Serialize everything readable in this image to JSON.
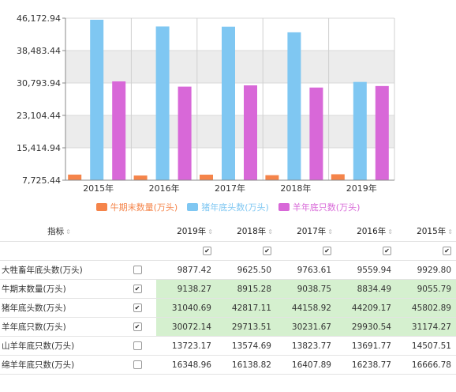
{
  "chart_data": {
    "type": "bar",
    "categories": [
      "2015年",
      "2016年",
      "2017年",
      "2018年",
      "2019年"
    ],
    "series": [
      {
        "name": "牛期末数量(万头)",
        "color": "#f5844a",
        "values": [
          9055.79,
          8834.49,
          9038.75,
          8915.28,
          9138.27
        ]
      },
      {
        "name": "猪年底头数(万头)",
        "color": "#7fc7f2",
        "values": [
          45802.89,
          44209.17,
          44158.92,
          42817.11,
          31040.69
        ]
      },
      {
        "name": "羊年底只数(万头)",
        "color": "#d868d8",
        "values": [
          31174.27,
          29930.54,
          30231.67,
          29713.51,
          30072.14
        ]
      }
    ],
    "ylim": [
      7725.44,
      46172.94
    ],
    "yticks": [
      "46,172.94",
      "38,483.44",
      "30,793.94",
      "23,104.44",
      "15,414.94",
      "7,725.44"
    ],
    "ytick_values": [
      46172.94,
      38483.44,
      30793.94,
      23104.44,
      15414.94,
      7725.44
    ],
    "legend_position": "bottom",
    "grid": true
  },
  "table": {
    "headers": {
      "indicator": "指标",
      "years": [
        "2019年",
        "2018年",
        "2017年",
        "2016年",
        "2015年"
      ]
    },
    "sort_icon": "⇕",
    "check_mark": "✔",
    "rows": [
      {
        "name": "大牲畜年底头数(万头)",
        "checked": false,
        "values": [
          "9877.42",
          "9625.50",
          "9763.61",
          "9559.94",
          "9929.80"
        ]
      },
      {
        "name": "牛期末数量(万头)",
        "checked": true,
        "values": [
          "9138.27",
          "8915.28",
          "9038.75",
          "8834.49",
          "9055.79"
        ]
      },
      {
        "name": "猪年底头数(万头)",
        "checked": true,
        "values": [
          "31040.69",
          "42817.11",
          "44158.92",
          "44209.17",
          "45802.89"
        ]
      },
      {
        "name": "羊年底只数(万头)",
        "checked": true,
        "values": [
          "30072.14",
          "29713.51",
          "30231.67",
          "29930.54",
          "31174.27"
        ]
      },
      {
        "name": "山羊年底只数(万头)",
        "checked": false,
        "values": [
          "13723.17",
          "13574.69",
          "13823.77",
          "13691.77",
          "14507.51"
        ]
      },
      {
        "name": "绵羊年底只数(万头)",
        "checked": false,
        "values": [
          "16348.96",
          "16138.82",
          "16407.89",
          "16238.77",
          "16666.78"
        ]
      }
    ]
  }
}
